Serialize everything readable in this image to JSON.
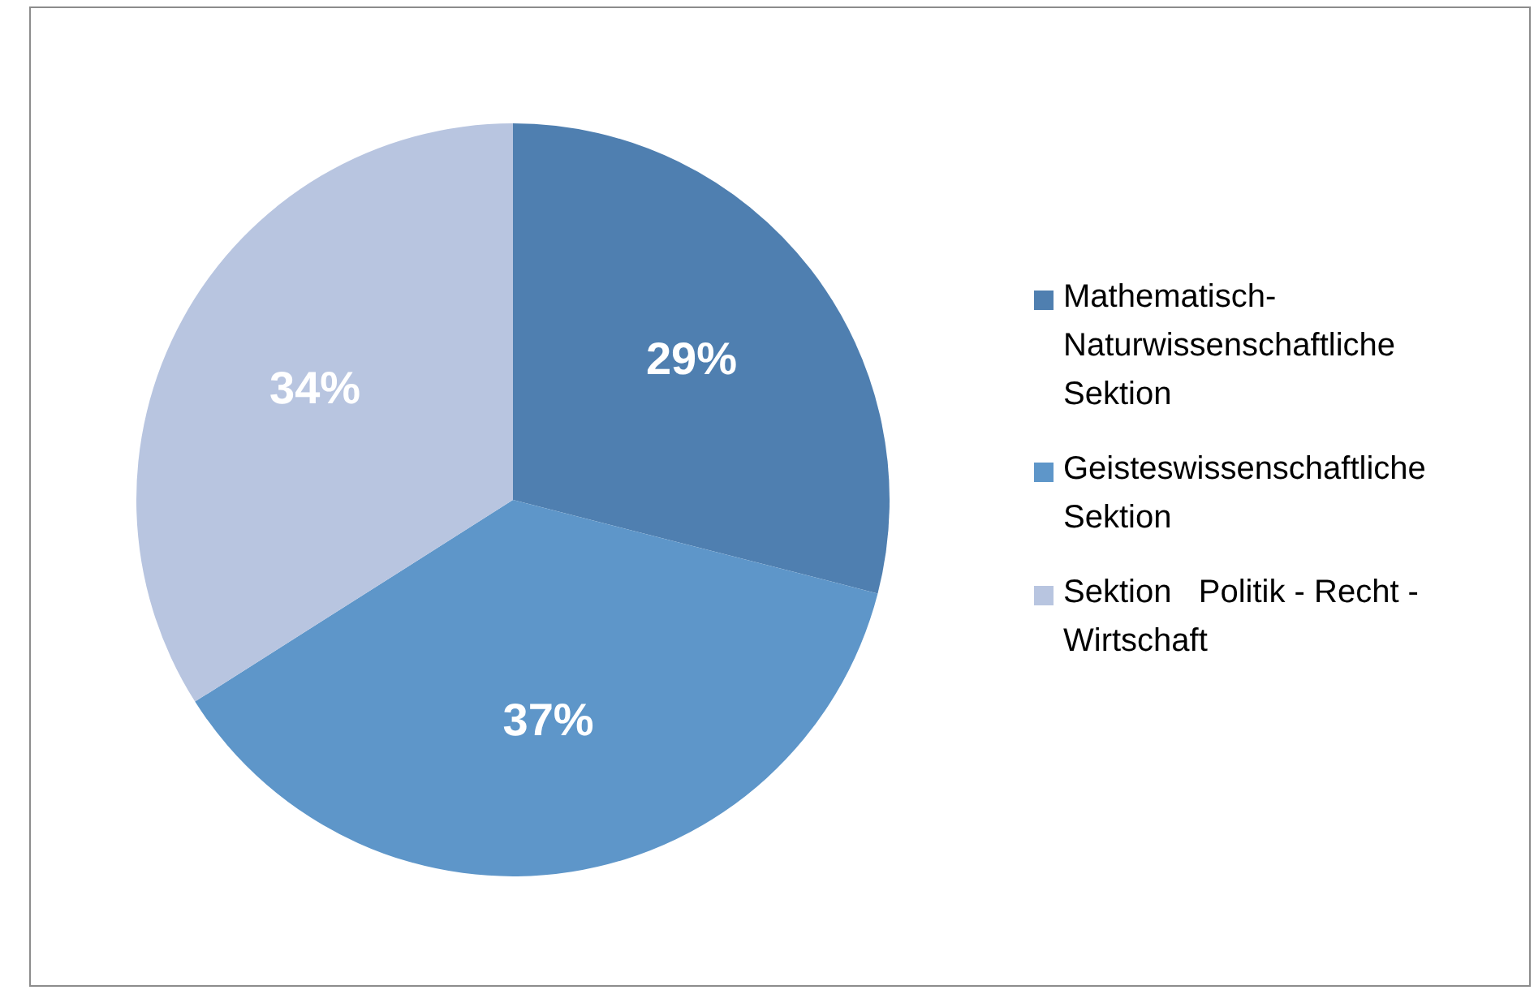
{
  "chart_data": {
    "type": "pie",
    "categories": [
      "Mathematisch-Naturwissenschaftliche Sektion",
      "Geisteswissenschaftliche Sektion",
      "Sektion   Politik - Recht - Wirtschaft"
    ],
    "values": [
      29,
      37,
      34
    ],
    "colors": [
      "#4f7fb0",
      "#5e96c9",
      "#b8c5e0"
    ],
    "value_labels": [
      "29%",
      "37%",
      "34%"
    ],
    "legend": "right"
  }
}
